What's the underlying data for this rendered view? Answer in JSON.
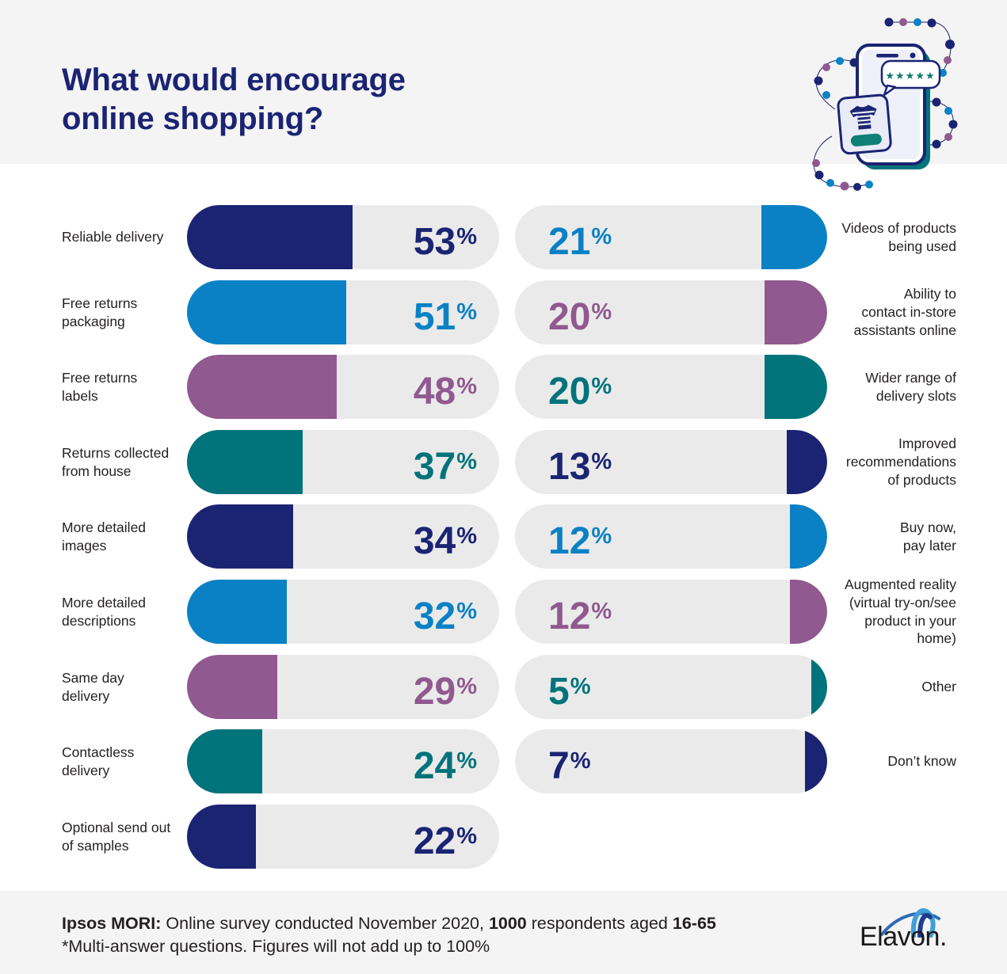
{
  "title": "What would encourage\nonline shopping?",
  "chart_data": {
    "type": "bar",
    "title": "What would encourage online shopping?",
    "unit": "%",
    "xlim": [
      0,
      100
    ],
    "orientation": "horizontal",
    "left_column": [
      {
        "label": "Reliable delivery",
        "value": 53,
        "color": "#1b2473"
      },
      {
        "label": "Free returns\npackaging",
        "value": 51,
        "color": "#0a81c5"
      },
      {
        "label": "Free returns\nlabels",
        "value": 48,
        "color": "#90598f"
      },
      {
        "label": "Returns collected\nfrom house",
        "value": 37,
        "color": "#00737b"
      },
      {
        "label": "More detailed\nimages",
        "value": 34,
        "color": "#1b2473"
      },
      {
        "label": "More detailed\ndescriptions",
        "value": 32,
        "color": "#0a81c5"
      },
      {
        "label": "Same day\ndelivery",
        "value": 29,
        "color": "#90598f"
      },
      {
        "label": "Contactless\ndelivery",
        "value": 24,
        "color": "#00737b"
      },
      {
        "label": "Optional send out\nof samples",
        "value": 22,
        "color": "#1b2473"
      }
    ],
    "right_column": [
      {
        "label": "Videos of products\nbeing used",
        "value": 21,
        "color": "#0a81c5"
      },
      {
        "label": "Ability to\ncontact in-store\nassistants online",
        "value": 20,
        "color": "#90598f"
      },
      {
        "label": "Wider range of\ndelivery slots",
        "value": 20,
        "color": "#00737b"
      },
      {
        "label": "Improved\nrecommendations\nof products",
        "value": 13,
        "color": "#1b2473"
      },
      {
        "label": "Buy now,\npay later",
        "value": 12,
        "color": "#0a81c5"
      },
      {
        "label": "Augmented reality\n(virtual try-on/see\nproduct in your\nhome)",
        "value": 12,
        "color": "#90598f"
      },
      {
        "label": "Other",
        "value": 5,
        "color": "#00737b"
      },
      {
        "label": "Don’t know",
        "value": 7,
        "color": "#1b2473"
      }
    ]
  },
  "footer": {
    "bold1": "Ipsos MORI:",
    "text1": " Online survey conducted November 2020, ",
    "bold2": "1000",
    "text2": " respondents aged ",
    "bold3": "16-65",
    "line2": "*Multi-answer questions. Figures will not add up to 100%"
  },
  "logo": {
    "text": "Elavon."
  },
  "palette": {
    "navy": "#1b2473",
    "blue": "#0a81c5",
    "purple": "#90598f",
    "teal": "#00737b",
    "track_gray": "#eaeaea",
    "band_gray": "#f4f4f4",
    "text": "#231f20"
  }
}
